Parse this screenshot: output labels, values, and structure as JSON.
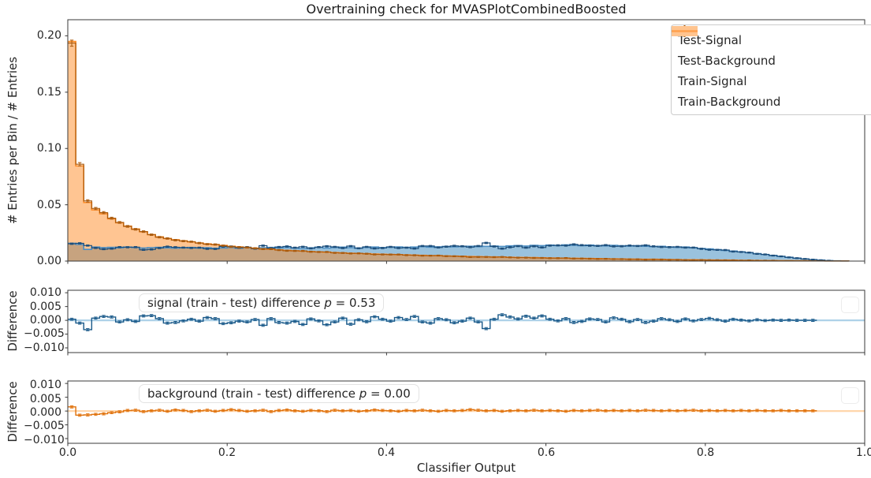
{
  "figure": {
    "title": "Overtraining check for MVASPlotCombinedBoosted",
    "background": "#ffffff"
  },
  "colors": {
    "c0_blue": "#1f77b4",
    "c1_orange": "#ff7f0e",
    "fill_opacity": 0.45,
    "train_signal_edge": "#4d8fc4",
    "train_background_edge": "#ff8c26",
    "test_signal": "#1d4f7c",
    "test_background": "#aa5a0c",
    "mid_zero_line": "#aed1e8",
    "mid_step": "#1a5a8a",
    "bottom_zero_line": "#ffd6ab",
    "bottom_step": "#e0720c",
    "spine": "#3a3a3a",
    "legend_patch_signal": "#a9cbe5",
    "legend_patch_background": "#ffc48f"
  },
  "legend": {
    "items": [
      {
        "label": "Test-Signal",
        "marker": "blue-patch-with-dark-blue-errorbar-cross"
      },
      {
        "label": "Test-Background",
        "marker": "orange-patch-with-dark-orange-errorbar-cross"
      },
      {
        "label": "Train-Signal",
        "marker": "blue-patch-with-blue-line"
      },
      {
        "label": "Train-Background",
        "marker": "orange-patch-with-orange-line"
      }
    ]
  },
  "main_panel": {
    "ylabel": "# Entries per Bin / # Entries",
    "ytick_labels": [
      "0.20",
      "0.15",
      "0.10",
      "0.05",
      "0.00"
    ]
  },
  "mid_panel": {
    "ylabel": "Difference",
    "ytick_labels": [
      "0.010",
      "0.005",
      "0.000",
      "−0.005",
      "−0.010"
    ],
    "annotation": {
      "prefix": "signal (train - test) difference ",
      "p": "p",
      "value": " = 0.53"
    }
  },
  "bottom_panel": {
    "ylabel": "Difference",
    "ytick_labels": [
      "0.010",
      "0.005",
      "0.000",
      "−0.005",
      "−0.010"
    ],
    "annotation": {
      "prefix": "background (train - test) difference ",
      "p": "p",
      "value": " = 0.00"
    }
  },
  "xaxis": {
    "label": "Classifier Output",
    "tick_labels": [
      "0.0",
      "0.2",
      "0.4",
      "0.6",
      "0.8",
      "1.0"
    ]
  },
  "chart_data": [
    {
      "type": "area",
      "subtype": "step-histogram",
      "panel": "main",
      "title": "Overtraining check for MVASPlotCombinedBoosted",
      "xlabel": "Classifier Output",
      "ylabel": "# Entries per Bin / # Entries",
      "xlim": [
        0,
        1
      ],
      "ylim": [
        0,
        0.2143
      ],
      "yticks": [
        0.0,
        0.05,
        0.1,
        0.15,
        0.2
      ],
      "xticks": [
        0.0,
        0.2,
        0.4,
        0.6,
        0.8,
        1.0
      ],
      "grid": false,
      "legend_position": "upper right",
      "bins": {
        "start": 0,
        "width": 0.01,
        "count": 100
      },
      "note": "Test histograms equal the Train histograms minus the corresponding (train - test) difference series plotted in the two lower panels; test series drawn as darker step lines with small error bars.",
      "series": [
        {
          "name": "Train-Signal",
          "style": "filled-step",
          "values": [
            0.0158,
            0.0148,
            0.0104,
            0.0125,
            0.012,
            0.0122,
            0.0118,
            0.0125,
            0.012,
            0.0116,
            0.012,
            0.0122,
            0.0118,
            0.0115,
            0.0118,
            0.0121,
            0.0116,
            0.0119,
            0.0114,
            0.0117,
            0.012,
            0.0115,
            0.0118,
            0.0113,
            0.0119,
            0.0121,
            0.0117,
            0.012,
            0.0115,
            0.0112,
            0.0118,
            0.0122,
            0.0116,
            0.012,
            0.0124,
            0.0119,
            0.0116,
            0.0121,
            0.0125,
            0.012,
            0.0123,
            0.0126,
            0.0122,
            0.0125,
            0.0128,
            0.0124,
            0.0127,
            0.013,
            0.0126,
            0.0129,
            0.0132,
            0.0128,
            0.0131,
            0.0134,
            0.013,
            0.0135,
            0.0138,
            0.0134,
            0.014,
            0.0137,
            0.0142,
            0.0138,
            0.0144,
            0.014,
            0.0137,
            0.0142,
            0.0138,
            0.0135,
            0.014,
            0.0136,
            0.0133,
            0.0137,
            0.0132,
            0.0128,
            0.0131,
            0.0126,
            0.0122,
            0.0125,
            0.0118,
            0.0112,
            0.0108,
            0.0102,
            0.0095,
            0.0089,
            0.0082,
            0.0074,
            0.0066,
            0.0058,
            0.005,
            0.0042,
            0.0034,
            0.0026,
            0.0019,
            0.0013,
            0.0008,
            0.0004,
            0.0002,
            0.0001,
            0.0,
            0.0
          ]
        },
        {
          "name": "Train-Background",
          "style": "filled-step",
          "values": [
            0.195,
            0.0845,
            0.052,
            0.0455,
            0.042,
            0.0375,
            0.034,
            0.031,
            0.0285,
            0.026,
            0.0235,
            0.0215,
            0.02,
            0.019,
            0.018,
            0.017,
            0.0161,
            0.0153,
            0.0146,
            0.0139,
            0.0132,
            0.0126,
            0.012,
            0.0115,
            0.011,
            0.0105,
            0.01,
            0.0096,
            0.0092,
            0.0089,
            0.0085,
            0.0082,
            0.0079,
            0.0076,
            0.0073,
            0.007,
            0.0068,
            0.0066,
            0.0063,
            0.0061,
            0.0059,
            0.0057,
            0.0055,
            0.0053,
            0.0051,
            0.0049,
            0.0048,
            0.0046,
            0.0044,
            0.0043,
            0.0041,
            0.004,
            0.0038,
            0.0037,
            0.0036,
            0.0034,
            0.0033,
            0.0032,
            0.0031,
            0.0029,
            0.0028,
            0.0027,
            0.0026,
            0.0025,
            0.0024,
            0.0023,
            0.0022,
            0.0021,
            0.002,
            0.0019,
            0.0018,
            0.0017,
            0.0016,
            0.0016,
            0.0015,
            0.0014,
            0.0013,
            0.0012,
            0.0012,
            0.0011,
            0.001,
            0.0009,
            0.0009,
            0.0008,
            0.0007,
            0.0007,
            0.0006,
            0.0005,
            0.0005,
            0.0004,
            0.0004,
            0.0003,
            0.0003,
            0.0002,
            0.0002,
            0.0001,
            0.0001,
            0.0001,
            0.0,
            0.0
          ]
        },
        {
          "name": "Test-Signal",
          "style": "errorbar-step",
          "values": "train_minus_difference"
        },
        {
          "name": "Test-Background",
          "style": "errorbar-step",
          "values": "train_minus_difference"
        }
      ]
    },
    {
      "type": "line",
      "subtype": "step",
      "panel": "middle",
      "ylabel": "Difference",
      "ylim": [
        -0.0117,
        0.0109
      ],
      "yticks": [
        0.01,
        0.005,
        0.0,
        -0.005,
        -0.01
      ],
      "zero_line": true,
      "annotation": "signal (train - test) difference p = 0.53",
      "p_value": 0.53,
      "series": [
        {
          "name": "signal (train - test) difference",
          "values": [
            0.0004,
            -0.001,
            -0.0034,
            0.0008,
            0.0014,
            0.0012,
            -0.0006,
            0.0002,
            -0.0004,
            0.0016,
            0.0017,
            0.0006,
            -0.001,
            -0.0008,
            -0.0002,
            0.0004,
            -0.0003,
            0.001,
            0.0006,
            -0.0012,
            -0.0009,
            -0.0003,
            -0.0006,
            0.0003,
            -0.0018,
            0.0006,
            -0.0008,
            -0.001,
            -0.0004,
            -0.0015,
            0.0005,
            -0.0002,
            -0.0016,
            -0.0006,
            0.0008,
            -0.0014,
            0.0002,
            -0.0005,
            0.0013,
            0.0004,
            -0.0003,
            0.001,
            0.0003,
            0.0014,
            -0.0006,
            -0.001,
            0.0006,
            0.0002,
            -0.0009,
            -0.0003,
            0.0008,
            -0.0006,
            -0.003,
            0.0004,
            0.002,
            0.0012,
            0.0005,
            0.0015,
            0.0008,
            0.0016,
            0.0004,
            -0.0002,
            0.0006,
            -0.0008,
            -0.0004,
            0.0005,
            0.0003,
            -0.0006,
            0.0009,
            0.0004,
            -0.0005,
            0.0003,
            -0.0008,
            -0.0003,
            0.0006,
            0.0002,
            -0.0004,
            0.0005,
            -0.0002,
            0.0003,
            0.0007,
            0.0002,
            -0.0003,
            0.0004,
            0.0001,
            -0.0002,
            0.0002,
            -0.0001,
            0.0001,
            0.0,
            0.0001,
            0.0,
            0.0,
            0.0,
            null,
            null,
            null,
            null,
            null,
            null
          ]
        }
      ]
    },
    {
      "type": "line",
      "subtype": "step",
      "panel": "bottom",
      "ylabel": "Difference",
      "xlabel": "Classifier Output",
      "ylim": [
        -0.0117,
        0.0109
      ],
      "yticks": [
        0.01,
        0.005,
        0.0,
        -0.005,
        -0.01
      ],
      "zero_line": true,
      "annotation": "background (train - test) difference p = 0.00",
      "p_value": 0.0,
      "series": [
        {
          "name": "background (train - test) difference",
          "values": [
            0.0015,
            -0.0015,
            -0.0014,
            -0.0012,
            -0.001,
            -0.0006,
            -0.0003,
            0.0002,
            0.0003,
            -0.0002,
            0.0001,
            0.0003,
            -0.0001,
            0.0004,
            0.0002,
            -0.0002,
            0.0001,
            0.0003,
            -0.0001,
            0.0002,
            0.0005,
            0.0002,
            -0.0001,
            0.0001,
            0.0003,
            -0.0002,
            0.0002,
            0.0004,
            0.0001,
            -0.0001,
            0.0002,
            0.0001,
            -0.0002,
            0.0003,
            0.0001,
            0.0002,
            -0.0001,
            0.0001,
            0.0004,
            0.0002,
            0.0001,
            -0.0001,
            0.0002,
            0.0001,
            0.0003,
            0.0001,
            -0.0001,
            0.0002,
            0.0001,
            0.0002,
            0.0005,
            0.0003,
            0.0001,
            0.0002,
            -0.0001,
            0.0001,
            0.0002,
            0.0001,
            0.0003,
            0.0001,
            0.0002,
            0.0001,
            -0.0001,
            0.0002,
            0.0001,
            0.0002,
            0.0003,
            0.0001,
            0.0002,
            0.0001,
            0.0002,
            0.0001,
            0.0003,
            0.0002,
            0.0001,
            0.0002,
            0.0001,
            0.0002,
            0.0003,
            0.0001,
            0.0002,
            0.0001,
            0.0002,
            0.0001,
            0.0002,
            0.0001,
            0.0002,
            0.0001,
            0.0001,
            0.0002,
            0.0001,
            0.0001,
            0.0001,
            0.0001,
            null,
            null,
            null,
            null,
            null,
            null
          ]
        }
      ]
    }
  ]
}
